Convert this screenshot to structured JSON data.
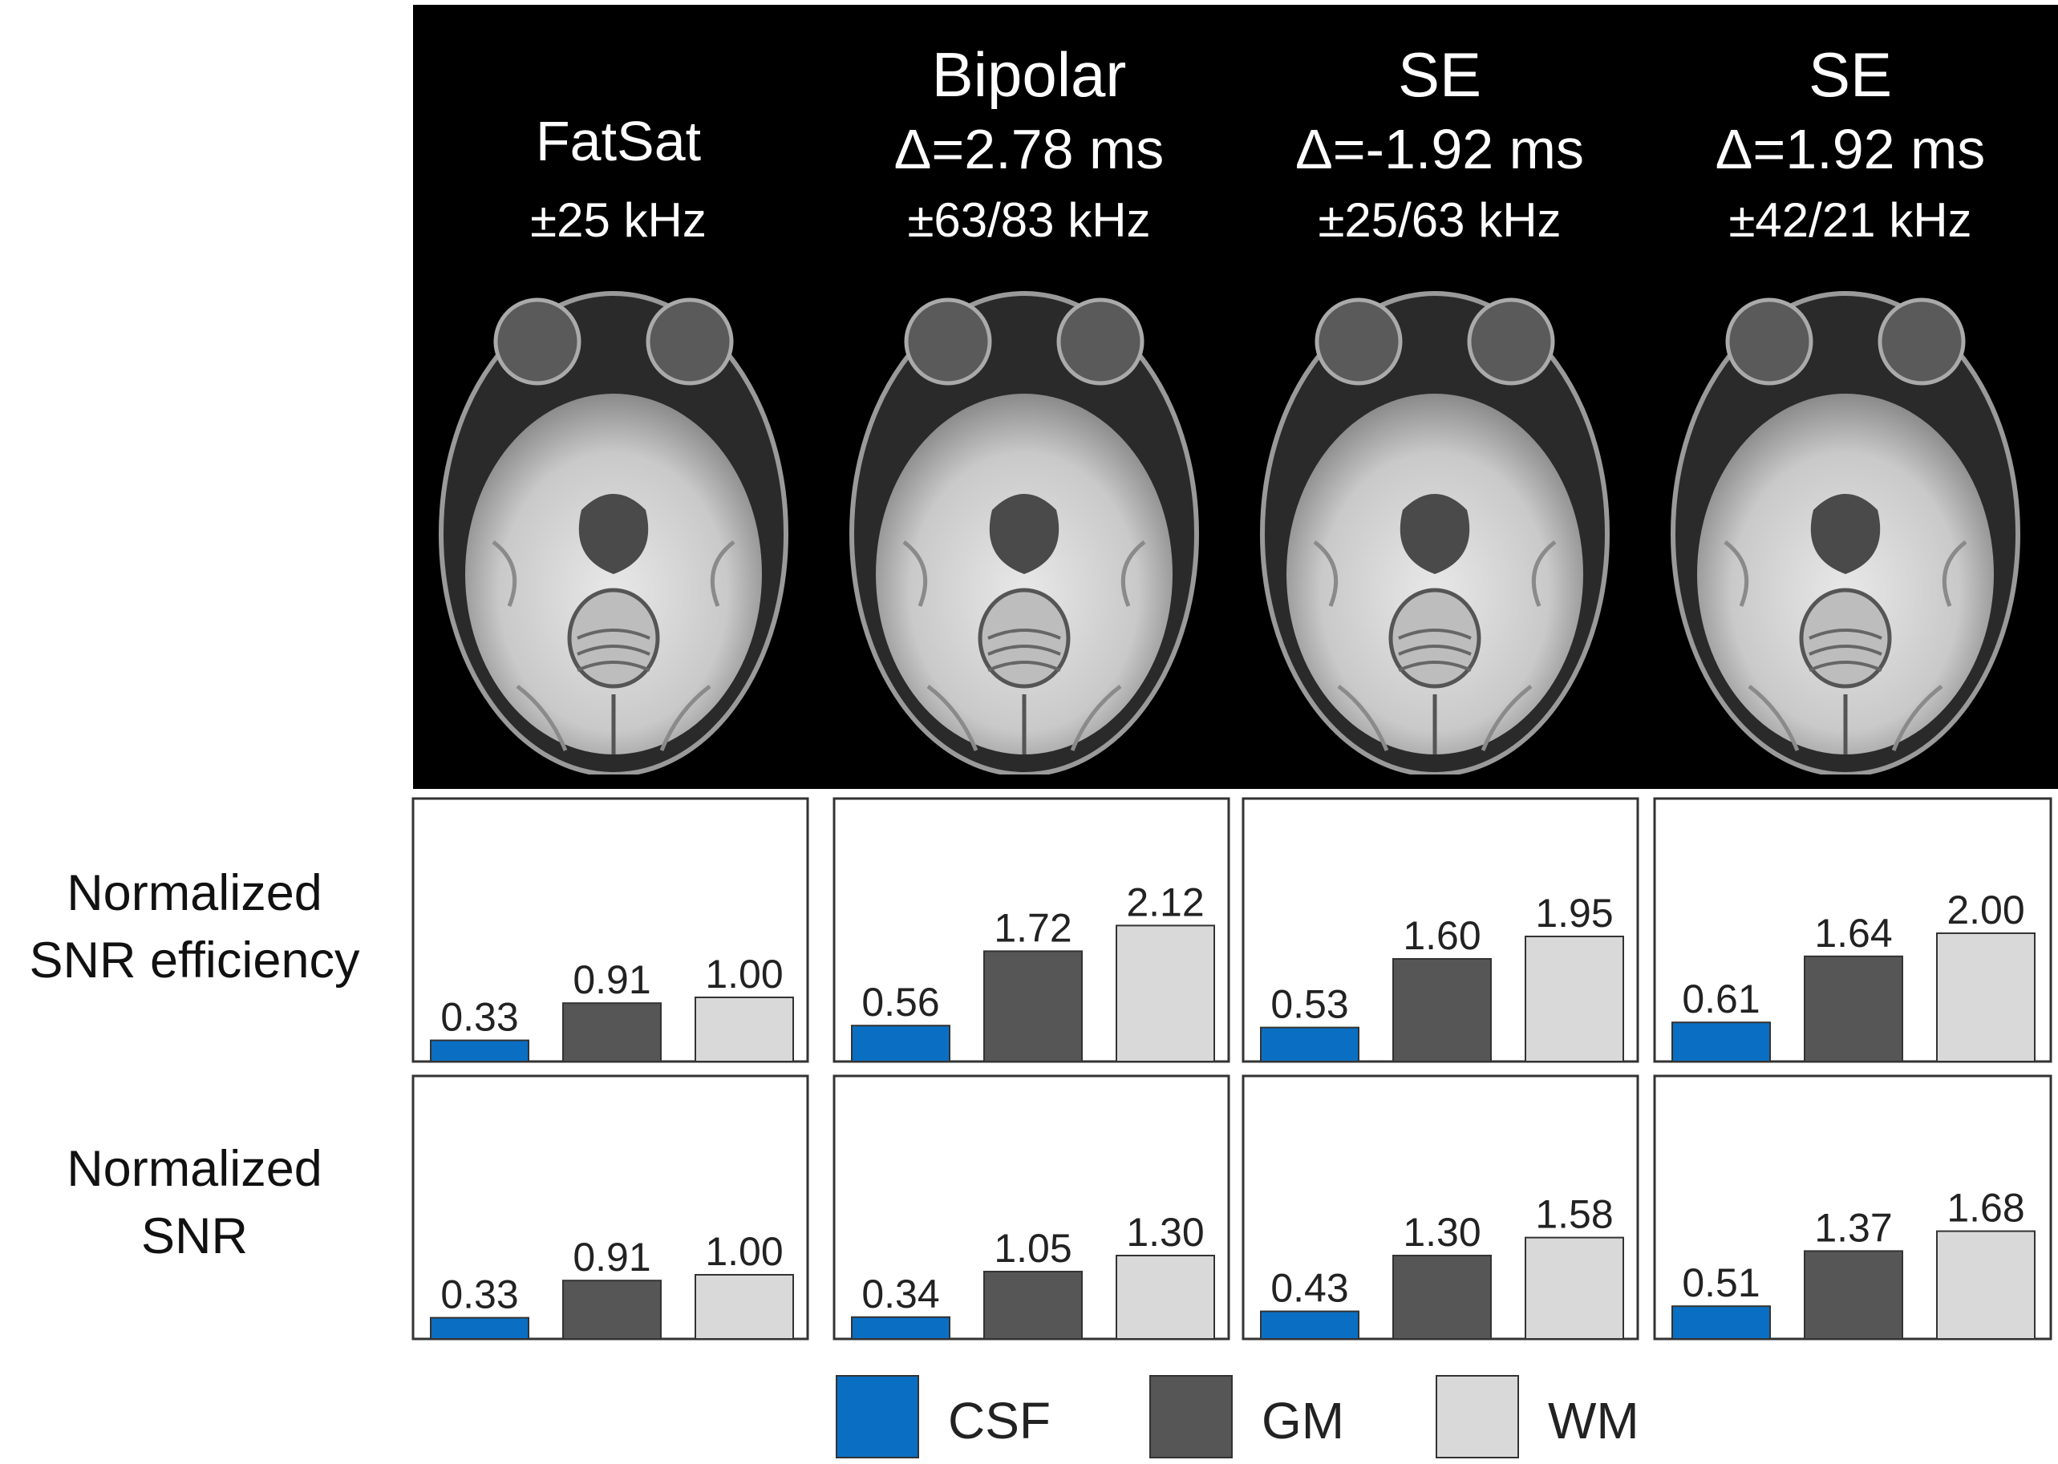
{
  "colors": {
    "CSF": "#0a6fc2",
    "GM": "#565656",
    "WM": "#d9d9d9",
    "frame": "#333333",
    "background": "#000000"
  },
  "columns": [
    {
      "line1": "",
      "line2": "FatSat",
      "line3": "±25 kHz"
    },
    {
      "line1": "Bipolar",
      "line2": "Δ=2.78 ms",
      "line3": "±63/83 kHz"
    },
    {
      "line1": "SE",
      "line2": "Δ=-1.92 ms",
      "line3": "±25/63 kHz"
    },
    {
      "line1": "SE",
      "line2": "Δ=1.92 ms",
      "line3": "±42/21 kHz"
    }
  ],
  "row_labels": [
    {
      "line1": "Normalized",
      "line2": "SNR efficiency"
    },
    {
      "line1": "Normalized",
      "line2": "SNR"
    }
  ],
  "legend": [
    {
      "label": "CSF",
      "color": "#0a6fc2"
    },
    {
      "label": "GM",
      "color": "#565656"
    },
    {
      "label": "WM",
      "color": "#d9d9d9"
    }
  ],
  "chart_data": [
    {
      "type": "bar",
      "row": "Normalized SNR efficiency",
      "column": "FatSat ±25 kHz",
      "categories": [
        "CSF",
        "GM",
        "WM"
      ],
      "values": [
        0.33,
        0.91,
        1.0
      ],
      "labels": [
        "0.33",
        "0.91",
        "1.00"
      ],
      "ylim": [
        0,
        2.5
      ]
    },
    {
      "type": "bar",
      "row": "Normalized SNR efficiency",
      "column": "Bipolar Δ=2.78 ms ±63/83 kHz",
      "categories": [
        "CSF",
        "GM",
        "WM"
      ],
      "values": [
        0.56,
        1.72,
        2.12
      ],
      "labels": [
        "0.56",
        "1.72",
        "2.12"
      ],
      "ylim": [
        0,
        2.5
      ]
    },
    {
      "type": "bar",
      "row": "Normalized SNR efficiency",
      "column": "SE Δ=-1.92 ms ±25/63 kHz",
      "categories": [
        "CSF",
        "GM",
        "WM"
      ],
      "values": [
        0.53,
        1.6,
        1.95
      ],
      "labels": [
        "0.53",
        "1.60",
        "1.95"
      ],
      "ylim": [
        0,
        2.5
      ]
    },
    {
      "type": "bar",
      "row": "Normalized SNR efficiency",
      "column": "SE Δ=1.92 ms ±42/21 kHz",
      "categories": [
        "CSF",
        "GM",
        "WM"
      ],
      "values": [
        0.61,
        1.64,
        2.0
      ],
      "labels": [
        "0.61",
        "1.64",
        "2.00"
      ],
      "ylim": [
        0,
        2.5
      ]
    },
    {
      "type": "bar",
      "row": "Normalized SNR",
      "column": "FatSat ±25 kHz",
      "categories": [
        "CSF",
        "GM",
        "WM"
      ],
      "values": [
        0.33,
        0.91,
        1.0
      ],
      "labels": [
        "0.33",
        "0.91",
        "1.00"
      ],
      "ylim": [
        0,
        2.5
      ]
    },
    {
      "type": "bar",
      "row": "Normalized SNR",
      "column": "Bipolar Δ=2.78 ms ±63/83 kHz",
      "categories": [
        "CSF",
        "GM",
        "WM"
      ],
      "values": [
        0.34,
        1.05,
        1.3
      ],
      "labels": [
        "0.34",
        "1.05",
        "1.30"
      ],
      "ylim": [
        0,
        2.5
      ]
    },
    {
      "type": "bar",
      "row": "Normalized SNR",
      "column": "SE Δ=-1.92 ms ±25/63 kHz",
      "categories": [
        "CSF",
        "GM",
        "WM"
      ],
      "values": [
        0.43,
        1.3,
        1.58
      ],
      "labels": [
        "0.43",
        "1.30",
        "1.58"
      ],
      "ylim": [
        0,
        2.5
      ]
    },
    {
      "type": "bar",
      "row": "Normalized SNR",
      "column": "SE Δ=1.92 ms ±42/21 kHz",
      "categories": [
        "CSF",
        "GM",
        "WM"
      ],
      "values": [
        0.51,
        1.37,
        1.68
      ],
      "labels": [
        "0.51",
        "1.37",
        "1.68"
      ],
      "ylim": [
        0,
        2.5
      ]
    }
  ]
}
